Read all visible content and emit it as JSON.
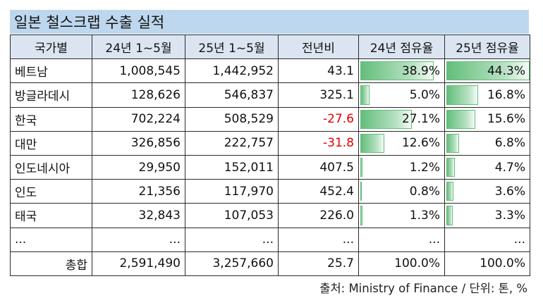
{
  "title": "일본 철스크랩 수출 실적",
  "columns": [
    "국가별",
    "24년 1~5월",
    "25년 1~5월",
    "전년비",
    "24년 점유율",
    "25년 점유율"
  ],
  "rows": [
    {
      "country": "베트남",
      "y24": "1,008,545",
      "y25": "1,442,952",
      "yoy": "43.1",
      "share24": "38.9%",
      "share25": "44.3%",
      "share24_value": 38.9,
      "share25_value": 44.3,
      "negative": false
    },
    {
      "country": "방글라데시",
      "y24": "128,626",
      "y25": "546,837",
      "yoy": "325.1",
      "share24": "5.0%",
      "share25": "16.8%",
      "share24_value": 5.0,
      "share25_value": 16.8,
      "negative": false
    },
    {
      "country": "한국",
      "y24": "702,224",
      "y25": "508,529",
      "yoy": "-27.6",
      "share24": "27.1%",
      "share25": "15.6%",
      "share24_value": 27.1,
      "share25_value": 15.6,
      "negative": true
    },
    {
      "country": "대만",
      "y24": "326,856",
      "y25": "222,757",
      "yoy": "-31.8",
      "share24": "12.6%",
      "share25": "6.8%",
      "share24_value": 12.6,
      "share25_value": 6.8,
      "negative": true
    },
    {
      "country": "인도네시아",
      "y24": "29,950",
      "y25": "152,011",
      "yoy": "407.5",
      "share24": "1.2%",
      "share25": "4.7%",
      "share24_value": 1.2,
      "share25_value": 4.7,
      "negative": false
    },
    {
      "country": "인도",
      "y24": "21,356",
      "y25": "117,970",
      "yoy": "452.4",
      "share24": "0.8%",
      "share25": "3.6%",
      "share24_value": 0.8,
      "share25_value": 3.6,
      "negative": false
    },
    {
      "country": "태국",
      "y24": "32,843",
      "y25": "107,053",
      "yoy": "226.0",
      "share24": "1.3%",
      "share25": "3.3%",
      "share24_value": 1.3,
      "share25_value": 3.3,
      "negative": false
    },
    {
      "country": "...",
      "y24": "...",
      "y25": "...",
      "yoy": "...",
      "share24": "...",
      "share25": "...",
      "share24_value": 0,
      "share25_value": 0,
      "negative": false
    }
  ],
  "total": {
    "label": "총합",
    "y24": "2,591,490",
    "y25": "3,257,660",
    "yoy": "25.7",
    "share24": "100.0%",
    "share25": "100.0%"
  },
  "source": "출처: Ministry of Finance / 단위: 톤, %",
  "colors": {
    "header_bg": "#dbe5f1",
    "title_bg": "#bdd7ee",
    "bar": "#63be7b",
    "negative": "#e00000"
  }
}
